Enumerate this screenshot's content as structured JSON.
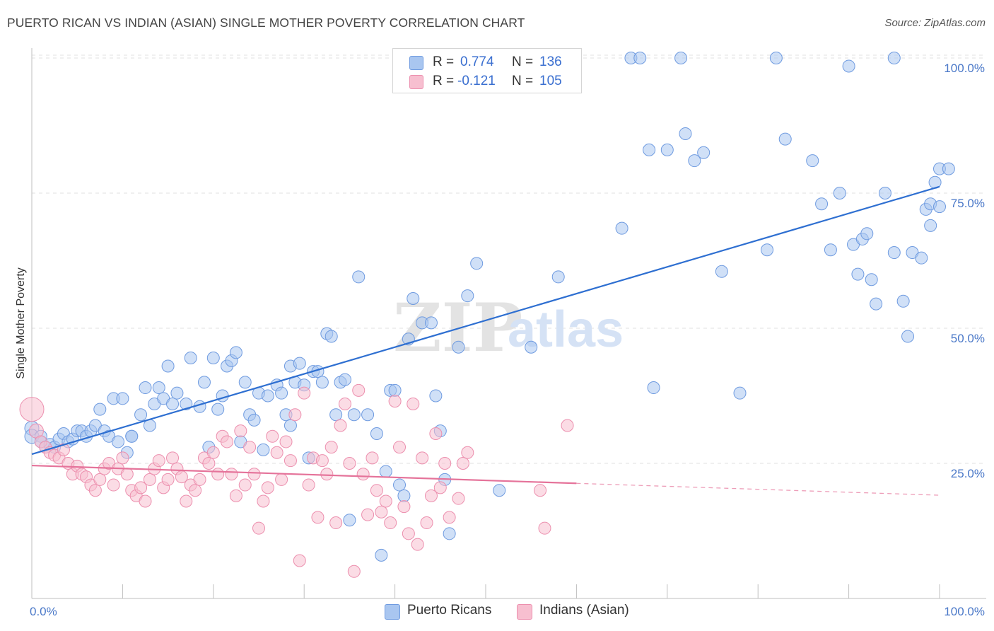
{
  "title": "PUERTO RICAN VS INDIAN (ASIAN) SINGLE MOTHER POVERTY CORRELATION CHART",
  "source": "Source: ZipAtlas.com",
  "watermark": {
    "zip": "ZIP",
    "atlas": "atlas"
  },
  "legend": {
    "r_label": "R =",
    "n_label": "N =",
    "rows": [
      {
        "r": "0.774",
        "n": "136",
        "color": "#a9c6f0",
        "border": "#6f9be0"
      },
      {
        "r": "-0.121",
        "n": "105",
        "color": "#f7bfd0",
        "border": "#ec8fae"
      }
    ]
  },
  "chart_data": {
    "type": "scatter",
    "xlabel": "",
    "ylabel": "Single Mother Poverty",
    "xlim": [
      0,
      100
    ],
    "ylim": [
      0,
      100
    ],
    "x_tick_labels": [
      "0.0%",
      "100.0%"
    ],
    "y_ticks": [
      25,
      50,
      75,
      100
    ],
    "y_tick_labels": [
      "25.0%",
      "50.0%",
      "75.0%",
      "100.0%"
    ],
    "grid": true,
    "series": [
      {
        "name": "Puerto Ricans",
        "color": "#a9c6f0",
        "stroke": "#6f9be0",
        "trend": {
          "x0": 0,
          "y0": 26.7,
          "x1": 100,
          "y1": 76.2,
          "color": "#2e6fd1"
        },
        "points": [
          [
            0,
            31.5
          ],
          [
            0,
            30
          ],
          [
            1,
            30
          ],
          [
            1,
            29
          ],
          [
            1.5,
            28
          ],
          [
            2,
            28.5
          ],
          [
            2.5,
            28
          ],
          [
            3,
            29.5
          ],
          [
            3.5,
            30.5
          ],
          [
            4,
            29
          ],
          [
            4.5,
            29.5
          ],
          [
            5,
            31
          ],
          [
            5.5,
            31
          ],
          [
            6,
            30
          ],
          [
            6.5,
            31
          ],
          [
            7,
            32
          ],
          [
            7.5,
            35
          ],
          [
            8,
            31
          ],
          [
            8.5,
            30
          ],
          [
            9,
            37
          ],
          [
            9.5,
            29
          ],
          [
            10,
            37
          ],
          [
            10.5,
            27
          ],
          [
            11,
            30
          ],
          [
            11,
            30
          ],
          [
            12,
            34
          ],
          [
            12.5,
            39
          ],
          [
            13,
            32
          ],
          [
            13.5,
            36
          ],
          [
            14,
            39
          ],
          [
            14.5,
            37
          ],
          [
            15,
            43
          ],
          [
            15.5,
            36
          ],
          [
            16,
            38
          ],
          [
            17,
            36
          ],
          [
            17.5,
            44.5
          ],
          [
            18.5,
            35.5
          ],
          [
            19,
            40
          ],
          [
            19.5,
            28
          ],
          [
            20,
            44.5
          ],
          [
            20.5,
            35
          ],
          [
            21,
            37.5
          ],
          [
            21.5,
            43
          ],
          [
            22,
            44
          ],
          [
            22.5,
            45.5
          ],
          [
            23,
            29
          ],
          [
            23.5,
            40
          ],
          [
            24,
            34
          ],
          [
            24.5,
            33
          ],
          [
            25,
            38
          ],
          [
            25.5,
            27.5
          ],
          [
            26,
            37.5
          ],
          [
            27,
            39.5
          ],
          [
            27.5,
            38
          ],
          [
            28,
            34
          ],
          [
            28.5,
            32
          ],
          [
            28.5,
            43
          ],
          [
            29,
            40
          ],
          [
            29.5,
            43.5
          ],
          [
            30,
            39.5
          ],
          [
            30.5,
            26
          ],
          [
            31,
            42
          ],
          [
            31.5,
            42
          ],
          [
            32,
            40
          ],
          [
            32.5,
            49
          ],
          [
            33,
            48.5
          ],
          [
            33.5,
            34
          ],
          [
            34,
            40
          ],
          [
            34.5,
            40.5
          ],
          [
            35,
            14.5
          ],
          [
            35.5,
            34
          ],
          [
            36,
            59.5
          ],
          [
            37,
            34
          ],
          [
            38,
            30.5
          ],
          [
            38.5,
            8
          ],
          [
            39,
            23.5
          ],
          [
            39.5,
            38.5
          ],
          [
            40,
            38.5
          ],
          [
            40.5,
            21
          ],
          [
            41,
            19
          ],
          [
            41.5,
            48
          ],
          [
            42,
            55.5
          ],
          [
            43,
            51
          ],
          [
            44,
            51
          ],
          [
            44.5,
            37.5
          ],
          [
            45,
            31
          ],
          [
            45.5,
            22
          ],
          [
            46,
            12
          ],
          [
            47,
            46.5
          ],
          [
            48,
            56
          ],
          [
            49,
            62
          ],
          [
            51.5,
            20
          ],
          [
            55,
            46.5
          ],
          [
            58,
            59.5
          ],
          [
            65,
            68.5
          ],
          [
            66,
            100
          ],
          [
            67,
            100
          ],
          [
            68,
            83
          ],
          [
            68.5,
            39
          ],
          [
            70,
            83
          ],
          [
            71.5,
            100
          ],
          [
            72,
            86
          ],
          [
            73,
            81
          ],
          [
            74,
            82.5
          ],
          [
            76,
            60.5
          ],
          [
            78,
            38
          ],
          [
            81,
            64.5
          ],
          [
            82,
            100
          ],
          [
            83,
            85
          ],
          [
            86,
            81
          ],
          [
            87,
            73
          ],
          [
            88,
            64.5
          ],
          [
            89,
            75
          ],
          [
            90,
            98.5
          ],
          [
            90.5,
            65.5
          ],
          [
            91,
            60
          ],
          [
            91.5,
            66.5
          ],
          [
            92,
            67.5
          ],
          [
            92.5,
            59
          ],
          [
            93,
            54.5
          ],
          [
            94,
            75
          ],
          [
            95,
            64
          ],
          [
            95,
            100
          ],
          [
            96,
            55
          ],
          [
            96.5,
            48.5
          ],
          [
            97,
            64
          ],
          [
            98,
            63
          ],
          [
            98.5,
            72
          ],
          [
            99,
            69
          ],
          [
            99,
            73
          ],
          [
            99.5,
            77
          ],
          [
            100,
            79.5
          ],
          [
            100,
            72.5
          ],
          [
            101,
            79.5
          ]
        ]
      },
      {
        "name": "Indians (Asian)",
        "color": "#f7bfd0",
        "stroke": "#ec8fae",
        "trend": {
          "x0": 0,
          "y0": 24.6,
          "x1": 60,
          "y1": 21.3,
          "dash_x1": 100,
          "dash_y1": 19.1,
          "color": "#e5739a"
        },
        "points": [
          [
            0,
            35
          ],
          [
            0.5,
            31
          ],
          [
            1,
            29
          ],
          [
            1.5,
            28
          ],
          [
            2,
            27
          ],
          [
            2.5,
            26.5
          ],
          [
            3,
            26
          ],
          [
            3.5,
            27.5
          ],
          [
            4,
            25
          ],
          [
            4.5,
            23
          ],
          [
            5,
            24.5
          ],
          [
            5.5,
            23
          ],
          [
            6,
            22.5
          ],
          [
            6.5,
            21
          ],
          [
            7,
            20
          ],
          [
            7.5,
            22
          ],
          [
            8,
            24
          ],
          [
            8.5,
            25
          ],
          [
            9,
            21
          ],
          [
            9.5,
            24
          ],
          [
            10,
            26
          ],
          [
            10.5,
            23
          ],
          [
            11,
            20
          ],
          [
            11.5,
            19
          ],
          [
            12,
            20.5
          ],
          [
            12.5,
            18
          ],
          [
            13,
            22
          ],
          [
            13.5,
            24
          ],
          [
            14,
            25.5
          ],
          [
            14.5,
            20.5
          ],
          [
            15,
            22
          ],
          [
            15.5,
            26
          ],
          [
            16,
            24
          ],
          [
            16.5,
            22.5
          ],
          [
            17,
            18
          ],
          [
            17.5,
            21
          ],
          [
            18,
            20
          ],
          [
            18.5,
            22
          ],
          [
            19,
            26
          ],
          [
            19.5,
            25
          ],
          [
            20,
            27
          ],
          [
            20.5,
            23
          ],
          [
            21,
            30
          ],
          [
            21.5,
            29
          ],
          [
            22,
            23
          ],
          [
            22.5,
            19
          ],
          [
            23,
            31
          ],
          [
            23.5,
            21
          ],
          [
            24,
            28
          ],
          [
            24.5,
            23
          ],
          [
            25,
            13
          ],
          [
            25.5,
            18
          ],
          [
            26,
            20.5
          ],
          [
            26.5,
            30
          ],
          [
            27,
            27
          ],
          [
            27.5,
            22
          ],
          [
            28,
            29
          ],
          [
            28.5,
            25.5
          ],
          [
            29,
            34
          ],
          [
            29.5,
            7
          ],
          [
            30,
            38
          ],
          [
            30.5,
            21
          ],
          [
            31,
            26
          ],
          [
            31.5,
            15
          ],
          [
            32,
            25.5
          ],
          [
            32.5,
            23
          ],
          [
            33,
            28
          ],
          [
            33.5,
            14
          ],
          [
            34,
            32
          ],
          [
            34.5,
            36
          ],
          [
            35,
            25
          ],
          [
            35.5,
            5
          ],
          [
            36,
            38.5
          ],
          [
            36.5,
            23
          ],
          [
            37,
            15.5
          ],
          [
            37.5,
            26
          ],
          [
            38,
            20
          ],
          [
            38.5,
            16
          ],
          [
            39,
            18
          ],
          [
            39.5,
            14
          ],
          [
            40,
            36.5
          ],
          [
            40.5,
            28
          ],
          [
            41,
            17
          ],
          [
            41.5,
            12
          ],
          [
            42,
            36
          ],
          [
            42.5,
            10
          ],
          [
            43,
            26
          ],
          [
            43.5,
            14
          ],
          [
            44,
            19
          ],
          [
            44.5,
            30.5
          ],
          [
            45,
            20.5
          ],
          [
            45.5,
            25
          ],
          [
            46,
            15
          ],
          [
            47,
            18.5
          ],
          [
            47.5,
            25
          ],
          [
            48,
            27
          ],
          [
            56,
            20
          ],
          [
            56.5,
            13
          ],
          [
            59,
            32
          ]
        ]
      }
    ]
  },
  "bottom_legend": [
    {
      "label": "Puerto Ricans",
      "color": "#a9c6f0",
      "border": "#6f9be0"
    },
    {
      "label": "Indians (Asian)",
      "color": "#f7bfd0",
      "border": "#ec8fae"
    }
  ]
}
